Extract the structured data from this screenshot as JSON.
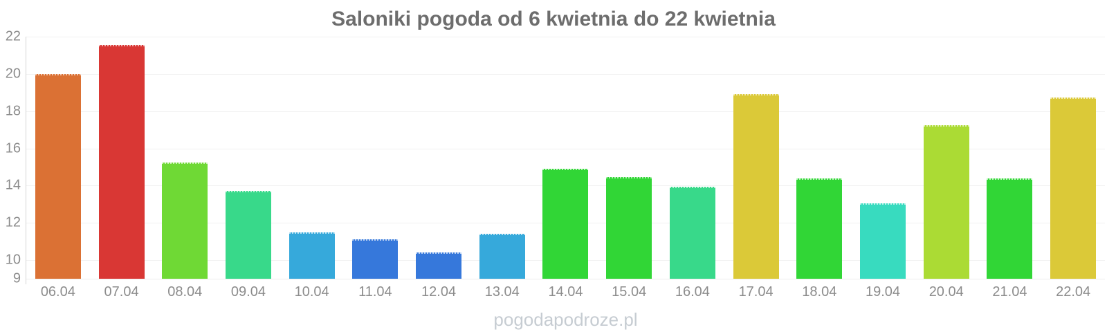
{
  "title": "Saloniki pogoda od 6 kwietnia do 22 kwietnia",
  "watermark": "pogodapodroze.pl",
  "chart_data": {
    "type": "bar",
    "title": "Saloniki pogoda od 6 kwietnia do 22 kwietnia",
    "categories": [
      "06.04",
      "07.04",
      "08.04",
      "09.04",
      "10.04",
      "11.04",
      "12.04",
      "13.04",
      "14.04",
      "15.04",
      "16.04",
      "17.04",
      "18.04",
      "19.04",
      "20.04",
      "21.04",
      "22.04"
    ],
    "values": [
      20.0,
      21.55,
      15.25,
      13.7,
      11.5,
      11.1,
      10.4,
      11.4,
      14.9,
      14.45,
      13.95,
      18.9,
      14.4,
      13.05,
      17.25,
      14.4,
      18.75
    ],
    "bar_colors": [
      "#DB7134",
      "#D93734",
      "#6FD935",
      "#38D98A",
      "#36A9DB",
      "#3678DB",
      "#3678DB",
      "#36A9DB",
      "#31D636",
      "#31D636",
      "#38D98A",
      "#DBC938",
      "#31D636",
      "#38DBBF",
      "#ABDB34",
      "#31D636",
      "#DBC938"
    ],
    "xlabel": "",
    "ylabel": "",
    "ylim": [
      9,
      22
    ],
    "yticks": [
      9,
      10,
      12,
      14,
      16,
      18,
      20,
      22
    ],
    "grid": true,
    "legend_position": "none"
  },
  "style": {
    "title_color": "#6d6d6d",
    "tick_label_color": "#8c8c8c",
    "gridline_color": "#f1f1f1",
    "axis_line_color": "#d4d4d4",
    "watermark_color": "#c6ccd2",
    "background": "#ffffff"
  }
}
